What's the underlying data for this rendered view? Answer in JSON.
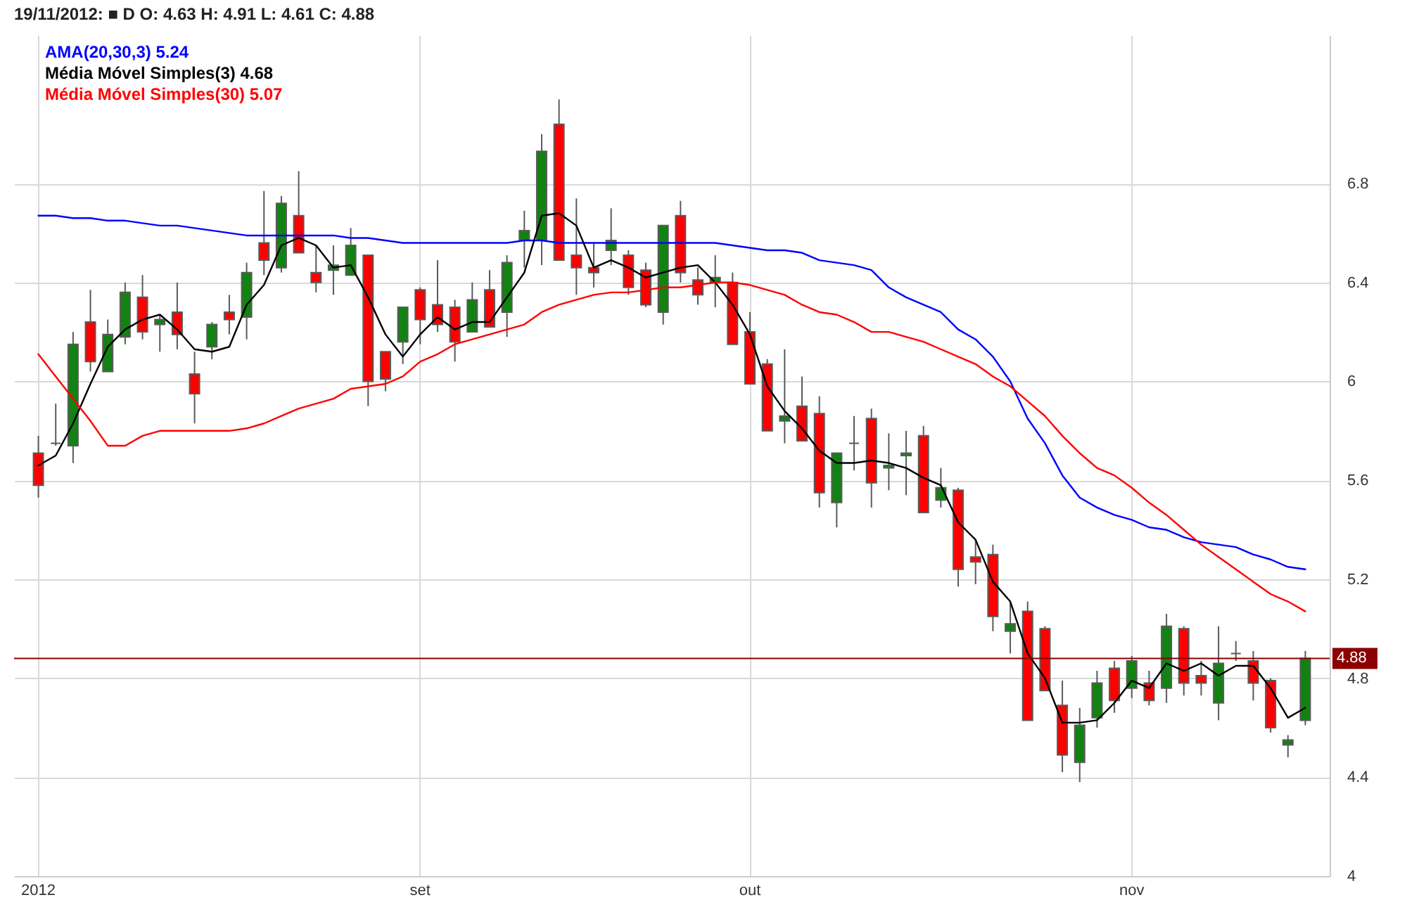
{
  "chart_data": {
    "type": "candlestick",
    "title": "19/11/2012: ■ D  O: 4.63  H: 4.91  L: 4.61  C: 4.88",
    "categories": [
      "2012",
      null,
      null,
      null,
      null,
      null,
      null,
      null,
      null,
      null,
      null,
      null,
      null,
      null,
      null,
      null,
      null,
      null,
      null,
      null,
      null,
      null,
      "set",
      null,
      null,
      null,
      null,
      null,
      null,
      null,
      null,
      null,
      null,
      null,
      null,
      null,
      null,
      null,
      null,
      null,
      null,
      "out",
      null,
      null,
      null,
      null,
      null,
      null,
      null,
      null,
      null,
      null,
      null,
      null,
      null,
      null,
      null,
      null,
      null,
      null,
      null,
      null,
      null,
      "nov",
      null,
      null,
      null,
      null,
      null,
      null,
      null,
      null,
      null,
      null
    ],
    "ohlc": [
      [
        5.71,
        5.78,
        5.53,
        5.58
      ],
      [
        5.75,
        5.91,
        5.74,
        5.75
      ],
      [
        5.74,
        6.2,
        5.67,
        6.15
      ],
      [
        6.24,
        6.37,
        6.04,
        6.08
      ],
      [
        6.04,
        6.25,
        6.04,
        6.19
      ],
      [
        6.18,
        6.4,
        6.15,
        6.36
      ],
      [
        6.34,
        6.43,
        6.17,
        6.2
      ],
      [
        6.23,
        6.27,
        6.12,
        6.25
      ],
      [
        6.28,
        6.4,
        6.13,
        6.19
      ],
      [
        6.03,
        6.12,
        5.83,
        5.95
      ],
      [
        6.14,
        6.24,
        6.09,
        6.23
      ],
      [
        6.28,
        6.35,
        6.19,
        6.25
      ],
      [
        6.26,
        6.48,
        6.17,
        6.44
      ],
      [
        6.56,
        6.77,
        6.43,
        6.49
      ],
      [
        6.46,
        6.75,
        6.44,
        6.72
      ],
      [
        6.67,
        6.85,
        6.52,
        6.52
      ],
      [
        6.44,
        6.55,
        6.36,
        6.4
      ],
      [
        6.45,
        6.55,
        6.35,
        6.47
      ],
      [
        6.43,
        6.62,
        6.43,
        6.55
      ],
      [
        6.51,
        6.51,
        5.9,
        6.0
      ],
      [
        6.12,
        6.12,
        5.96,
        6.01
      ],
      [
        6.16,
        6.3,
        6.07,
        6.3
      ],
      [
        6.37,
        6.38,
        6.15,
        6.25
      ],
      [
        6.31,
        6.49,
        6.2,
        6.23
      ],
      [
        6.3,
        6.33,
        6.08,
        6.16
      ],
      [
        6.2,
        6.4,
        6.2,
        6.33
      ],
      [
        6.37,
        6.45,
        6.22,
        6.22
      ],
      [
        6.28,
        6.51,
        6.18,
        6.48
      ],
      [
        6.57,
        6.69,
        6.46,
        6.61
      ],
      [
        6.57,
        7.0,
        6.47,
        6.93
      ],
      [
        7.04,
        7.14,
        6.49,
        6.49
      ],
      [
        6.51,
        6.74,
        6.35,
        6.46
      ],
      [
        6.46,
        6.56,
        6.38,
        6.44
      ],
      [
        6.53,
        6.7,
        6.47,
        6.57
      ],
      [
        6.51,
        6.53,
        6.35,
        6.38
      ],
      [
        6.45,
        6.48,
        6.3,
        6.31
      ],
      [
        6.28,
        6.63,
        6.23,
        6.63
      ],
      [
        6.67,
        6.73,
        6.4,
        6.44
      ],
      [
        6.41,
        6.46,
        6.31,
        6.35
      ],
      [
        6.4,
        6.51,
        6.3,
        6.42
      ],
      [
        6.4,
        6.44,
        6.15,
        6.15
      ],
      [
        6.2,
        6.28,
        5.99,
        5.99
      ],
      [
        6.07,
        6.09,
        5.8,
        5.8
      ],
      [
        5.84,
        6.13,
        5.75,
        5.86
      ],
      [
        5.9,
        6.02,
        5.76,
        5.76
      ],
      [
        5.87,
        5.94,
        5.49,
        5.55
      ],
      [
        5.51,
        5.71,
        5.41,
        5.71
      ],
      [
        5.75,
        5.86,
        5.64,
        5.75
      ],
      [
        5.85,
        5.89,
        5.49,
        5.59
      ],
      [
        5.65,
        5.79,
        5.56,
        5.66
      ],
      [
        5.7,
        5.8,
        5.54,
        5.71
      ],
      [
        5.78,
        5.82,
        5.47,
        5.47
      ],
      [
        5.52,
        5.65,
        5.49,
        5.57
      ],
      [
        5.56,
        5.57,
        5.17,
        5.24
      ],
      [
        5.29,
        5.36,
        5.18,
        5.27
      ],
      [
        5.3,
        5.34,
        4.99,
        5.05
      ],
      [
        4.99,
        5.11,
        4.9,
        5.02
      ],
      [
        5.07,
        5.11,
        4.63,
        4.63
      ],
      [
        5.0,
        5.01,
        4.75,
        4.75
      ],
      [
        4.69,
        4.79,
        4.42,
        4.49
      ],
      [
        4.46,
        4.68,
        4.38,
        4.61
      ],
      [
        4.64,
        4.83,
        4.6,
        4.78
      ],
      [
        4.84,
        4.87,
        4.66,
        4.71
      ],
      [
        4.76,
        4.89,
        4.72,
        4.87
      ],
      [
        4.78,
        4.83,
        4.69,
        4.71
      ],
      [
        4.76,
        5.06,
        4.7,
        5.01
      ],
      [
        5.0,
        5.01,
        4.73,
        4.78
      ],
      [
        4.81,
        4.87,
        4.73,
        4.78
      ],
      [
        4.7,
        5.01,
        4.63,
        4.86
      ],
      [
        4.9,
        4.95,
        4.87,
        4.9
      ],
      [
        4.87,
        4.91,
        4.71,
        4.78
      ],
      [
        4.79,
        4.8,
        4.58,
        4.6
      ],
      [
        4.53,
        4.57,
        4.48,
        4.55
      ],
      [
        4.63,
        4.91,
        4.61,
        4.88
      ]
    ],
    "colors": [
      "#ff0000",
      "#5a5a5a",
      "#128212",
      "#ff0000",
      "#128212",
      "#128212",
      "#ff0000",
      "#128212",
      "#ff0000",
      "#ff0000",
      "#128212",
      "#ff0000",
      "#128212",
      "#ff0000",
      "#128212",
      "#ff0000",
      "#ff0000",
      "#128212",
      "#128212",
      "#ff0000",
      "#ff0000",
      "#128212",
      "#ff0000",
      "#ff0000",
      "#ff0000",
      "#128212",
      "#ff0000",
      "#128212",
      "#128212",
      "#128212",
      "#ff0000",
      "#ff0000",
      "#ff0000",
      "#128212",
      "#ff0000",
      "#ff0000",
      "#128212",
      "#ff0000",
      "#ff0000",
      "#128212",
      "#ff0000",
      "#ff0000",
      "#ff0000",
      "#128212",
      "#ff0000",
      "#ff0000",
      "#128212",
      "#5a5a5a",
      "#ff0000",
      "#128212",
      "#128212",
      "#ff0000",
      "#128212",
      "#ff0000",
      "#ff0000",
      "#ff0000",
      "#128212",
      "#ff0000",
      "#ff0000",
      "#ff0000",
      "#128212",
      "#128212",
      "#ff0000",
      "#128212",
      "#ff0000",
      "#128212",
      "#ff0000",
      "#ff0000",
      "#128212",
      "#5a5a5a",
      "#ff0000",
      "#ff0000",
      "#128212",
      "#128212"
    ],
    "series": [
      {
        "name": "AMA(20,30,3) 5.24",
        "type": "line",
        "color": "#0000ff",
        "values": [
          6.67,
          6.67,
          6.66,
          6.66,
          6.65,
          6.65,
          6.64,
          6.63,
          6.63,
          6.62,
          6.61,
          6.6,
          6.59,
          6.59,
          6.59,
          6.59,
          6.59,
          6.59,
          6.58,
          6.58,
          6.57,
          6.56,
          6.56,
          6.56,
          6.56,
          6.56,
          6.56,
          6.56,
          6.57,
          6.57,
          6.56,
          6.56,
          6.56,
          6.56,
          6.56,
          6.56,
          6.56,
          6.56,
          6.56,
          6.56,
          6.55,
          6.54,
          6.53,
          6.53,
          6.52,
          6.49,
          6.48,
          6.47,
          6.45,
          6.38,
          6.34,
          6.31,
          6.28,
          6.21,
          6.17,
          6.1,
          6.0,
          5.85,
          5.75,
          5.62,
          5.53,
          5.49,
          5.46,
          5.44,
          5.41,
          5.4,
          5.37,
          5.35,
          5.34,
          5.33,
          5.3,
          5.28,
          5.25,
          5.24
        ]
      },
      {
        "name": "Média Móvel Simples(3) 4.68",
        "type": "line",
        "color": "#000000",
        "values": [
          5.66,
          5.7,
          5.83,
          5.99,
          6.14,
          6.21,
          6.25,
          6.27,
          6.21,
          6.13,
          6.12,
          6.14,
          6.31,
          6.39,
          6.55,
          6.58,
          6.55,
          6.46,
          6.47,
          6.34,
          6.19,
          6.1,
          6.19,
          6.26,
          6.21,
          6.24,
          6.24,
          6.34,
          6.44,
          6.67,
          6.68,
          6.63,
          6.46,
          6.49,
          6.46,
          6.42,
          6.44,
          6.46,
          6.47,
          6.4,
          6.31,
          6.19,
          5.98,
          5.88,
          5.81,
          5.72,
          5.67,
          5.67,
          5.68,
          5.67,
          5.65,
          5.61,
          5.58,
          5.43,
          5.36,
          5.19,
          5.11,
          4.9,
          4.8,
          4.62,
          4.62,
          4.63,
          4.7,
          4.79,
          4.76,
          4.86,
          4.83,
          4.86,
          4.81,
          4.85,
          4.85,
          4.76,
          4.64,
          4.68
        ]
      },
      {
        "name": "Média Móvel Simples(30) 5.07",
        "type": "line",
        "color": "#ff0000",
        "values": [
          6.11,
          6.02,
          5.93,
          5.84,
          5.74,
          5.74,
          5.78,
          5.8,
          5.8,
          5.8,
          5.8,
          5.8,
          5.81,
          5.83,
          5.86,
          5.89,
          5.91,
          5.93,
          5.97,
          5.98,
          5.99,
          6.02,
          6.08,
          6.11,
          6.15,
          6.17,
          6.19,
          6.21,
          6.23,
          6.28,
          6.31,
          6.33,
          6.35,
          6.36,
          6.36,
          6.37,
          6.38,
          6.38,
          6.39,
          6.4,
          6.4,
          6.39,
          6.37,
          6.35,
          6.31,
          6.28,
          6.27,
          6.24,
          6.2,
          6.2,
          6.18,
          6.16,
          6.13,
          6.1,
          6.07,
          6.02,
          5.98,
          5.92,
          5.86,
          5.78,
          5.71,
          5.65,
          5.62,
          5.57,
          5.51,
          5.46,
          5.4,
          5.34,
          5.29,
          5.24,
          5.19,
          5.14,
          5.11,
          5.07
        ]
      }
    ],
    "ylim": [
      4,
      7.4
    ],
    "yticks": [
      4,
      4.4,
      4.8,
      5.2,
      5.6,
      6,
      6.4,
      6.8
    ],
    "ref_lines": [
      {
        "axis": "y",
        "value": 4.88,
        "label": "4.88",
        "color": "#8b0000"
      }
    ],
    "grid": true,
    "legend": "top left"
  }
}
